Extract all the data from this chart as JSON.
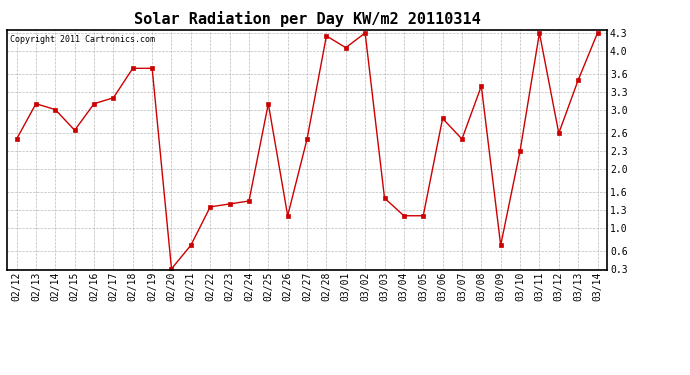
{
  "title": "Solar Radiation per Day KW/m2 20110314",
  "copyright": "Copyright 2011 Cartronics.com",
  "dates": [
    "02/12",
    "02/13",
    "02/14",
    "02/15",
    "02/16",
    "02/17",
    "02/18",
    "02/19",
    "02/20",
    "02/21",
    "02/22",
    "02/23",
    "02/24",
    "02/25",
    "02/26",
    "02/27",
    "02/28",
    "03/01",
    "03/02",
    "03/03",
    "03/04",
    "03/05",
    "03/06",
    "03/07",
    "03/08",
    "03/09",
    "03/10",
    "03/11",
    "03/12",
    "03/13",
    "03/14"
  ],
  "values": [
    2.5,
    3.1,
    3.0,
    2.65,
    3.1,
    3.2,
    3.7,
    3.7,
    0.3,
    0.7,
    1.35,
    1.4,
    1.45,
    3.1,
    1.2,
    2.5,
    4.25,
    4.05,
    4.3,
    1.5,
    1.2,
    1.2,
    2.85,
    2.5,
    3.4,
    0.7,
    2.3,
    4.3,
    2.6,
    3.5,
    4.3
  ],
  "line_color": "#cc0000",
  "marker_color": "#cc0000",
  "bg_color": "#ffffff",
  "grid_color": "#aaaaaa",
  "ylim_min": 0.3,
  "ylim_max": 4.3,
  "yticks": [
    0.3,
    0.6,
    1.0,
    1.3,
    1.6,
    2.0,
    2.3,
    2.6,
    3.0,
    3.3,
    3.6,
    4.0,
    4.3
  ],
  "title_fontsize": 11,
  "copyright_fontsize": 6,
  "tick_fontsize": 7,
  "ytick_fontsize": 7
}
